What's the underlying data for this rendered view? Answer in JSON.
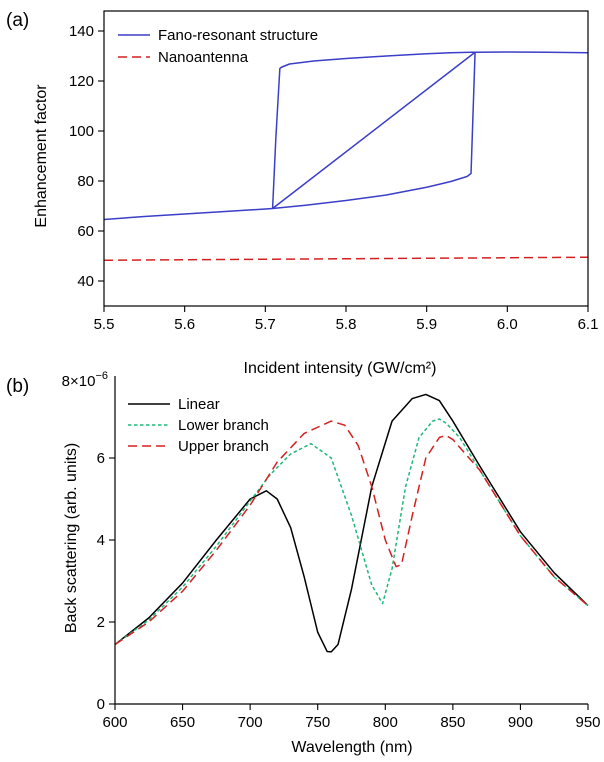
{
  "chart_data": [
    {
      "type": "line",
      "panel_label": "(a)",
      "xlabel": "Incident intensity (GW/cm²)",
      "ylabel": "Enhancement factor",
      "xlim": [
        5.5,
        6.1
      ],
      "ylim": [
        30,
        148
      ],
      "x_ticks": [
        5.5,
        5.6,
        5.7,
        5.8,
        5.9,
        6.0,
        6.1
      ],
      "x_tick_labels": [
        "5.5",
        "5.6",
        "5.7",
        "5.8",
        "5.9",
        "6.0",
        "6.1"
      ],
      "y_ticks": [
        40,
        60,
        80,
        100,
        120,
        140
      ],
      "y_tick_labels": [
        "40",
        "60",
        "80",
        "100",
        "120",
        "140"
      ],
      "grid": false,
      "legend_position": "top-left",
      "series": [
        {
          "name": "Fano-resonant structure",
          "color": "#3a3ec8",
          "dash": "solid",
          "x": [
            5.5,
            5.55,
            5.6,
            5.65,
            5.7,
            5.709,
            5.75,
            5.8,
            5.85,
            5.9,
            5.93,
            5.95,
            5.955,
            5.96,
            5.955,
            5.93,
            5.9,
            5.85,
            5.8,
            5.76,
            5.73,
            5.72,
            5.718,
            5.713,
            5.709,
            5.709,
            5.96,
            6.0,
            6.05,
            6.1
          ],
          "y": [
            64.6,
            65.8,
            66.8,
            67.8,
            68.8,
            69.0,
            70.3,
            72.2,
            74.4,
            77.5,
            79.8,
            81.8,
            83.0,
            131.5,
            131.5,
            131.3,
            130.9,
            130.0,
            129.0,
            128.0,
            126.8,
            125.5,
            125.0,
            97.0,
            69.0,
            69.0,
            131.5,
            131.6,
            131.5,
            131.3
          ]
        },
        {
          "name": "Nanoantenna",
          "color": "#d42020",
          "dash": "dashed",
          "x": [
            5.5,
            5.6,
            5.7,
            5.8,
            5.9,
            6.0,
            6.1
          ],
          "y": [
            48.3,
            48.5,
            48.7,
            48.9,
            49.1,
            49.3,
            49.5
          ]
        }
      ]
    },
    {
      "type": "line",
      "panel_label": "(b)",
      "xlabel": "Wavelength (nm)",
      "ylabel": "Back scattering (arb. units)",
      "xlim": [
        600,
        950
      ],
      "ylim": [
        0,
        8
      ],
      "y_scale_label": "8×10",
      "y_scale_exponent": "−6",
      "x_ticks": [
        600,
        650,
        700,
        750,
        800,
        850,
        900,
        950
      ],
      "x_tick_labels": [
        "600",
        "650",
        "700",
        "750",
        "800",
        "850",
        "900",
        "950"
      ],
      "y_ticks": [
        0,
        2,
        4,
        6
      ],
      "y_tick_labels": [
        "0",
        "2",
        "4",
        "6"
      ],
      "grid": false,
      "legend_position": "top-left",
      "series": [
        {
          "name": "Linear",
          "color": "#000000",
          "dash": "solid",
          "x": [
            600,
            625,
            650,
            675,
            700,
            712,
            720,
            730,
            740,
            750,
            757,
            760,
            765,
            775,
            790,
            805,
            820,
            830,
            840,
            850,
            870,
            900,
            925,
            950
          ],
          "y": [
            1.45,
            2.1,
            2.95,
            4.0,
            5.0,
            5.2,
            5.0,
            4.3,
            3.1,
            1.75,
            1.28,
            1.27,
            1.45,
            2.8,
            5.3,
            6.9,
            7.45,
            7.55,
            7.4,
            6.9,
            5.8,
            4.2,
            3.2,
            2.4
          ]
        },
        {
          "name": "Lower branch",
          "color": "#1fb87a",
          "dash": "dotted",
          "x": [
            600,
            625,
            650,
            675,
            700,
            715,
            730,
            745,
            760,
            775,
            790,
            798,
            805,
            815,
            825,
            835,
            840,
            845,
            855,
            870,
            900,
            925,
            950
          ],
          "y": [
            1.45,
            2.05,
            2.85,
            3.85,
            4.95,
            5.6,
            6.1,
            6.35,
            6.0,
            4.6,
            2.9,
            2.45,
            3.3,
            5.3,
            6.5,
            6.9,
            6.95,
            6.85,
            6.5,
            5.7,
            4.1,
            3.1,
            2.4
          ]
        },
        {
          "name": "Upper branch",
          "color": "#d42020",
          "dash": "dashed",
          "x": [
            600,
            625,
            650,
            675,
            700,
            720,
            740,
            760,
            770,
            780,
            790,
            800,
            808,
            812,
            820,
            830,
            840,
            845,
            850,
            870,
            900,
            925,
            950
          ],
          "y": [
            1.45,
            2.0,
            2.75,
            3.75,
            4.85,
            5.9,
            6.6,
            6.9,
            6.8,
            6.3,
            5.3,
            4.0,
            3.35,
            3.4,
            4.6,
            6.0,
            6.5,
            6.55,
            6.45,
            5.7,
            4.1,
            3.1,
            2.4
          ]
        }
      ]
    }
  ]
}
